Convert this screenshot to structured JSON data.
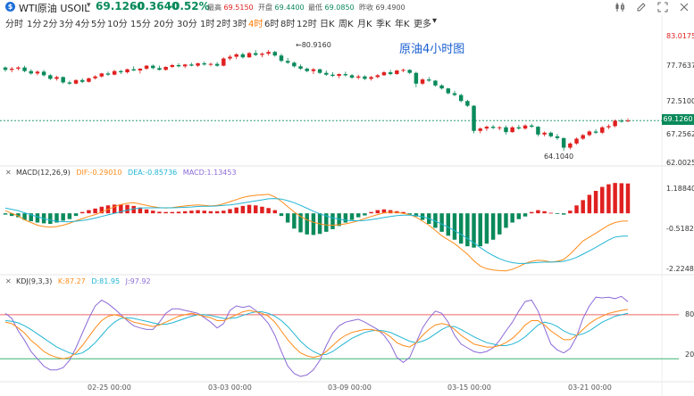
{
  "header": {
    "logo_letter": "$",
    "symbol": "WTI原油 USOIL",
    "price": "69.1260",
    "change": "-0.3640",
    "change_pct": "-0.52%",
    "stats": [
      {
        "label": "最高",
        "value": "69.5150",
        "color": "#e02020"
      },
      {
        "label": "开盘",
        "value": "69.4400",
        "color": "#0a8a5b"
      },
      {
        "label": "最低",
        "value": "69.0850",
        "color": "#0a8a5b"
      },
      {
        "label": "昨收",
        "value": "69.4900",
        "color": "#555555"
      }
    ],
    "tools": [
      "candle-icon",
      "edit-icon",
      "fullscreen-icon",
      "close-icon"
    ]
  },
  "timeframes": [
    "分时",
    "1分",
    "2分",
    "3分",
    "4分",
    "5分",
    "10分",
    "15分",
    "20分",
    "30分",
    "1时",
    "2时",
    "3时",
    "4时",
    "6时",
    "8时",
    "12时",
    "日K",
    "周K",
    "月K",
    "季K",
    "年K",
    "更多"
  ],
  "active_timeframe": "4时",
  "main": {
    "note": "原油4小时图",
    "y_labels": [
      "83.0175",
      "77.7637",
      "72.5100",
      "67.2562",
      "62.0025"
    ],
    "last_price": "69.1260",
    "high_annotation": "←80.9160",
    "low_annotation": "64.1040"
  },
  "macd": {
    "name": "MACD(12,26,9)",
    "dif": "DIF:-0.29010",
    "dea": "DEA:-0.85736",
    "macd": "MACD:1.13453",
    "y_labels": [
      "1.18840",
      "-0.51823",
      "-2.22486"
    ]
  },
  "kdj": {
    "name": "KDJ(9,3,3)",
    "k": "K:87.27",
    "d": "D:81.95",
    "j": "J:97.92",
    "y_labels": [
      "80",
      "20"
    ]
  },
  "x_labels": [
    "02-25 00:00",
    "03-03 00:00",
    "03-09 00:00",
    "03-15 00:00",
    "03-21 00:00"
  ],
  "colors": {
    "up": "#e02020",
    "down": "#0a8a5b",
    "dif": "#ff8c1a",
    "dea": "#22b5d3",
    "j": "#8c6ad8",
    "accent": "#ff7a00"
  },
  "chart_data": [
    {
      "type": "candlestick",
      "title": "原油4小时图",
      "ylim": [
        62.0025,
        83.0175
      ],
      "candles": [
        [
          78.0,
          78.2,
          77.3,
          77.6
        ],
        [
          77.6,
          78.1,
          77.2,
          77.8
        ],
        [
          77.8,
          78.2,
          77.5,
          78.0
        ],
        [
          78.0,
          78.3,
          77.2,
          77.4
        ],
        [
          77.4,
          77.7,
          76.8,
          77.0
        ],
        [
          77.0,
          77.5,
          76.7,
          77.3
        ],
        [
          77.3,
          77.6,
          76.5,
          76.7
        ],
        [
          76.7,
          76.9,
          75.9,
          76.1
        ],
        [
          76.1,
          76.6,
          75.8,
          76.4
        ],
        [
          76.4,
          76.5,
          75.3,
          75.5
        ],
        [
          75.5,
          75.8,
          75.1,
          75.3
        ],
        [
          75.3,
          76.0,
          75.2,
          75.9
        ],
        [
          75.9,
          76.2,
          75.4,
          75.6
        ],
        [
          75.6,
          76.3,
          75.5,
          76.2
        ],
        [
          76.2,
          76.7,
          76.0,
          76.5
        ],
        [
          76.5,
          77.1,
          76.3,
          77.0
        ],
        [
          77.0,
          77.3,
          76.6,
          76.8
        ],
        [
          76.8,
          77.6,
          76.7,
          77.4
        ],
        [
          77.4,
          77.6,
          76.9,
          77.2
        ],
        [
          77.2,
          77.8,
          77.0,
          77.7
        ],
        [
          77.7,
          78.2,
          77.4,
          77.5
        ],
        [
          77.5,
          77.9,
          77.0,
          77.8
        ],
        [
          77.8,
          78.4,
          77.6,
          78.3
        ],
        [
          78.3,
          78.5,
          77.7,
          77.9
        ],
        [
          77.9,
          78.3,
          77.5,
          77.6
        ],
        [
          77.6,
          78.2,
          77.5,
          78.1
        ],
        [
          78.1,
          78.6,
          77.9,
          78.4
        ],
        [
          78.4,
          78.7,
          78.0,
          78.2
        ],
        [
          78.2,
          78.6,
          77.9,
          78.5
        ],
        [
          78.5,
          78.8,
          78.2,
          78.3
        ],
        [
          78.3,
          78.8,
          78.1,
          78.7
        ],
        [
          78.7,
          79.0,
          78.3,
          78.5
        ],
        [
          78.5,
          78.8,
          78.2,
          78.6
        ],
        [
          78.6,
          78.9,
          78.1,
          78.3
        ],
        [
          78.3,
          79.7,
          78.2,
          79.5
        ],
        [
          79.5,
          80.1,
          79.2,
          79.8
        ],
        [
          79.8,
          80.4,
          79.4,
          80.2
        ],
        [
          80.2,
          80.5,
          79.5,
          79.7
        ],
        [
          79.7,
          80.6,
          79.6,
          80.4
        ],
        [
          80.4,
          80.9,
          79.9,
          80.1
        ],
        [
          80.1,
          80.5,
          79.7,
          80.3
        ],
        [
          80.3,
          80.916,
          80.0,
          80.6
        ],
        [
          80.6,
          80.8,
          79.8,
          80.0
        ],
        [
          80.0,
          80.3,
          78.9,
          79.1
        ],
        [
          79.1,
          79.6,
          78.6,
          78.8
        ],
        [
          78.8,
          79.0,
          78.0,
          78.2
        ],
        [
          78.2,
          78.5,
          77.6,
          77.8
        ],
        [
          77.8,
          78.0,
          77.2,
          77.4
        ],
        [
          77.4,
          77.9,
          76.9,
          77.7
        ],
        [
          77.7,
          77.8,
          76.9,
          77.1
        ],
        [
          77.1,
          77.5,
          76.6,
          76.8
        ],
        [
          76.8,
          77.2,
          76.4,
          76.6
        ],
        [
          76.6,
          77.0,
          76.2,
          76.9
        ],
        [
          76.9,
          77.3,
          76.5,
          76.7
        ],
        [
          76.7,
          76.9,
          76.1,
          76.3
        ],
        [
          76.3,
          76.8,
          76.0,
          76.5
        ],
        [
          76.5,
          76.7,
          75.9,
          76.1
        ],
        [
          76.1,
          76.6,
          75.8,
          76.4
        ],
        [
          76.4,
          76.9,
          76.2,
          76.7
        ],
        [
          76.7,
          77.4,
          76.6,
          77.2
        ],
        [
          77.2,
          77.6,
          76.7,
          76.9
        ],
        [
          76.9,
          77.6,
          76.8,
          77.5
        ],
        [
          77.5,
          77.8,
          77.2,
          77.6
        ],
        [
          77.6,
          77.7,
          76.9,
          77.1
        ],
        [
          77.1,
          77.3,
          74.7,
          75.3
        ],
        [
          75.3,
          76.2,
          75.1,
          76.0
        ],
        [
          76.0,
          76.4,
          75.6,
          75.8
        ],
        [
          75.8,
          75.9,
          74.8,
          75.0
        ],
        [
          75.0,
          75.2,
          74.3,
          74.5
        ],
        [
          74.5,
          74.6,
          73.5,
          73.7
        ],
        [
          73.7,
          74.1,
          73.2,
          73.4
        ],
        [
          73.4,
          73.6,
          72.2,
          72.4
        ],
        [
          72.4,
          72.6,
          71.4,
          71.6
        ],
        [
          71.6,
          71.7,
          67.0,
          67.4
        ],
        [
          67.4,
          68.0,
          67.0,
          67.8
        ],
        [
          67.8,
          68.3,
          67.4,
          68.1
        ],
        [
          68.1,
          68.4,
          67.7,
          67.9
        ],
        [
          67.9,
          68.2,
          67.5,
          68.0
        ],
        [
          68.0,
          68.3,
          66.8,
          67.2
        ],
        [
          67.2,
          68.2,
          67.1,
          68.0
        ],
        [
          68.0,
          68.4,
          67.6,
          67.8
        ],
        [
          67.8,
          68.5,
          67.6,
          68.3
        ],
        [
          68.3,
          68.6,
          67.9,
          68.1
        ],
        [
          68.1,
          68.2,
          66.5,
          66.8
        ],
        [
          66.8,
          67.3,
          66.5,
          67.1
        ],
        [
          67.1,
          67.3,
          66.3,
          66.5
        ],
        [
          66.5,
          66.9,
          65.9,
          66.2
        ],
        [
          66.2,
          66.3,
          64.104,
          64.6
        ],
        [
          64.6,
          65.5,
          64.3,
          65.3
        ],
        [
          65.3,
          66.3,
          65.1,
          66.1
        ],
        [
          66.1,
          66.9,
          65.9,
          66.7
        ],
        [
          66.7,
          67.5,
          66.5,
          67.3
        ],
        [
          67.3,
          67.7,
          66.9,
          67.1
        ],
        [
          67.1,
          68.2,
          66.9,
          68.0
        ],
        [
          68.0,
          68.5,
          67.7,
          68.2
        ],
        [
          68.2,
          69.3,
          68.0,
          69.1
        ],
        [
          69.1,
          69.4,
          68.8,
          69.0
        ],
        [
          69.0,
          69.515,
          68.9,
          69.126
        ]
      ]
    },
    {
      "type": "macd",
      "title": "MACD(12,26,9)",
      "ylim": [
        -2.22486,
        1.1884
      ],
      "dif": [
        0.1,
        0.0,
        -0.1,
        -0.25,
        -0.35,
        -0.45,
        -0.5,
        -0.52,
        -0.5,
        -0.45,
        -0.38,
        -0.28,
        -0.2,
        -0.12,
        -0.05,
        0.05,
        0.15,
        0.25,
        0.33,
        0.38,
        0.4,
        0.35,
        0.3,
        0.25,
        0.22,
        0.2,
        0.22,
        0.25,
        0.28,
        0.3,
        0.32,
        0.3,
        0.28,
        0.3,
        0.36,
        0.44,
        0.52,
        0.6,
        0.65,
        0.68,
        0.7,
        0.72,
        0.62,
        0.46,
        0.25,
        0.05,
        -0.12,
        -0.25,
        -0.34,
        -0.4,
        -0.44,
        -0.45,
        -0.43,
        -0.4,
        -0.35,
        -0.28,
        -0.2,
        -0.12,
        -0.05,
        0.02,
        0.05,
        0.03,
        0.0,
        -0.05,
        -0.15,
        -0.3,
        -0.45,
        -0.65,
        -0.85,
        -1.0,
        -1.15,
        -1.35,
        -1.55,
        -1.8,
        -2.0,
        -2.1,
        -2.15,
        -2.17,
        -2.18,
        -2.12,
        -2.02,
        -1.9,
        -1.82,
        -1.78,
        -1.8,
        -1.85,
        -1.82,
        -1.75,
        -1.55,
        -1.3,
        -1.05,
        -0.9,
        -0.75,
        -0.6,
        -0.45,
        -0.35,
        -0.3,
        -0.29
      ],
      "dea": [
        0.2,
        0.15,
        0.1,
        0.02,
        -0.06,
        -0.13,
        -0.2,
        -0.26,
        -0.3,
        -0.32,
        -0.32,
        -0.3,
        -0.27,
        -0.23,
        -0.18,
        -0.12,
        -0.06,
        0.0,
        0.06,
        0.12,
        0.17,
        0.2,
        0.21,
        0.21,
        0.21,
        0.21,
        0.21,
        0.22,
        0.23,
        0.24,
        0.26,
        0.27,
        0.27,
        0.28,
        0.3,
        0.32,
        0.35,
        0.39,
        0.43,
        0.47,
        0.51,
        0.55,
        0.56,
        0.54,
        0.48,
        0.4,
        0.3,
        0.19,
        0.08,
        -0.02,
        -0.1,
        -0.17,
        -0.22,
        -0.26,
        -0.28,
        -0.28,
        -0.27,
        -0.24,
        -0.2,
        -0.16,
        -0.12,
        -0.09,
        -0.07,
        -0.07,
        -0.09,
        -0.13,
        -0.2,
        -0.3,
        -0.41,
        -0.53,
        -0.66,
        -0.8,
        -0.95,
        -1.12,
        -1.3,
        -1.46,
        -1.6,
        -1.72,
        -1.81,
        -1.87,
        -1.9,
        -1.9,
        -1.88,
        -1.86,
        -1.85,
        -1.85,
        -1.84,
        -1.82,
        -1.76,
        -1.67,
        -1.55,
        -1.42,
        -1.29,
        -1.15,
        -1.01,
        -0.9,
        -0.87,
        -0.86
      ],
      "hist": [
        -0.05,
        -0.1,
        -0.15,
        -0.25,
        -0.3,
        -0.35,
        -0.38,
        -0.4,
        -0.35,
        -0.28,
        -0.22,
        -0.1,
        0.05,
        0.12,
        0.18,
        0.25,
        0.3,
        0.33,
        0.34,
        0.32,
        0.28,
        0.22,
        0.15,
        0.1,
        0.06,
        0.05,
        0.05,
        0.06,
        0.08,
        0.1,
        0.12,
        0.1,
        0.08,
        0.08,
        0.1,
        0.16,
        0.22,
        0.28,
        0.32,
        0.3,
        0.25,
        0.2,
        0.12,
        -0.1,
        -0.35,
        -0.58,
        -0.72,
        -0.8,
        -0.82,
        -0.78,
        -0.7,
        -0.6,
        -0.48,
        -0.35,
        -0.25,
        -0.15,
        -0.08,
        0.05,
        0.12,
        0.15,
        0.12,
        0.08,
        0.05,
        -0.05,
        -0.12,
        -0.25,
        -0.4,
        -0.55,
        -0.7,
        -0.85,
        -1.0,
        -1.15,
        -1.25,
        -1.3,
        -1.25,
        -1.15,
        -1.0,
        -0.8,
        -0.55,
        -0.35,
        -0.22,
        -0.12,
        0.05,
        0.12,
        0.08,
        0.02,
        -0.02,
        -0.05,
        0.1,
        0.3,
        0.5,
        0.7,
        0.85,
        1.0,
        1.1,
        1.15,
        1.14,
        1.13
      ]
    },
    {
      "type": "kdj",
      "title": "KDJ(9,3,3)",
      "ylim": [
        -10,
        120
      ],
      "k": [
        70,
        68,
        62,
        55,
        45,
        38,
        30,
        25,
        22,
        20,
        22,
        28,
        38,
        50,
        62,
        72,
        78,
        80,
        78,
        74,
        70,
        68,
        66,
        64,
        66,
        70,
        74,
        78,
        80,
        82,
        80,
        78,
        76,
        72,
        72,
        76,
        80,
        84,
        86,
        84,
        82,
        78,
        70,
        58,
        46,
        36,
        28,
        24,
        22,
        24,
        30,
        38,
        46,
        52,
        56,
        58,
        60,
        60,
        58,
        56,
        50,
        42,
        38,
        36,
        42,
        52,
        60,
        66,
        68,
        66,
        60,
        52,
        46,
        40,
        38,
        36,
        36,
        38,
        42,
        48,
        56,
        66,
        72,
        72,
        66,
        58,
        52,
        46,
        46,
        52,
        60,
        68,
        74,
        78,
        82,
        84,
        86,
        87.27
      ],
      "d": [
        72,
        71,
        69,
        65,
        60,
        54,
        48,
        42,
        36,
        32,
        28,
        26,
        28,
        34,
        42,
        52,
        62,
        70,
        75,
        76,
        75,
        73,
        71,
        69,
        67,
        67,
        69,
        72,
        75,
        78,
        80,
        80,
        79,
        77,
        75,
        75,
        76,
        79,
        82,
        84,
        84,
        82,
        78,
        72,
        64,
        54,
        44,
        36,
        30,
        26,
        26,
        30,
        36,
        42,
        48,
        52,
        56,
        58,
        59,
        58,
        56,
        52,
        48,
        44,
        42,
        44,
        48,
        54,
        60,
        64,
        64,
        60,
        55,
        50,
        46,
        42,
        40,
        38,
        38,
        40,
        44,
        50,
        58,
        66,
        70,
        68,
        64,
        58,
        54,
        52,
        54,
        58,
        64,
        70,
        74,
        78,
        80,
        81.95
      ],
      "j": [
        82,
        75,
        58,
        45,
        30,
        20,
        10,
        5,
        5,
        8,
        18,
        35,
        55,
        75,
        92,
        100,
        95,
        88,
        80,
        72,
        65,
        62,
        60,
        60,
        70,
        82,
        88,
        88,
        86,
        84,
        82,
        76,
        70,
        62,
        68,
        86,
        92,
        90,
        92,
        86,
        78,
        68,
        52,
        30,
        10,
        0,
        -4,
        -2,
        5,
        18,
        38,
        55,
        65,
        70,
        72,
        74,
        70,
        65,
        60,
        52,
        40,
        22,
        15,
        22,
        42,
        62,
        75,
        85,
        82,
        70,
        52,
        40,
        35,
        30,
        28,
        30,
        35,
        45,
        58,
        70,
        85,
        98,
        100,
        85,
        62,
        40,
        32,
        28,
        34,
        50,
        75,
        92,
        104,
        103,
        104,
        102,
        105,
        97.92
      ]
    }
  ]
}
